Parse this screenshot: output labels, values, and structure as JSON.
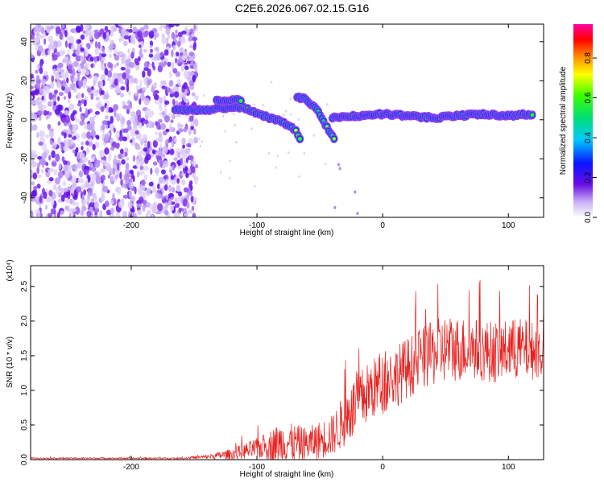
{
  "figure": {
    "title": "C2E6.2026.067.02.15.G16"
  },
  "chart_data": [
    {
      "type": "heatmap",
      "xlabel": "Height of straight line (km)",
      "ylabel": "Frequency (Hz)",
      "xlim": [
        -280,
        128
      ],
      "ylim": [
        -50,
        49
      ],
      "x_ticks": [
        -200,
        -100,
        0,
        100
      ],
      "x_tick_labels": [
        "-200",
        "-100",
        "0",
        "100"
      ],
      "y_ticks": [
        -40,
        -20,
        0,
        20,
        40
      ],
      "y_tick_labels": [
        "-40",
        "-20",
        "0",
        "20",
        "40"
      ],
      "colorbar": {
        "label": "Normalized spectral amplitude",
        "range": [
          0,
          0.97
        ],
        "ticks": [
          0,
          0.2,
          0.4,
          0.6,
          0.8
        ],
        "tick_labels": [
          "0.0",
          "0.2",
          "0.4",
          "0.6",
          "0.8"
        ]
      },
      "noise_region_x": [
        -280,
        -148
      ],
      "ridge": [
        {
          "x": -165,
          "f": 5
        },
        {
          "x": -150,
          "f": 5
        },
        {
          "x": -140,
          "f": 5
        },
        {
          "x": -130,
          "f": 6
        },
        {
          "x": -120,
          "f": 6
        },
        {
          "x": -110,
          "f": 6
        },
        {
          "x": -100,
          "f": 3
        },
        {
          "x": -90,
          "f": 1
        },
        {
          "x": -80,
          "f": -1
        },
        {
          "x": -70,
          "f": -5
        },
        {
          "x": -65,
          "f": -10
        }
      ],
      "ridge_secondary": [
        {
          "x": -132,
          "f": 10
        },
        {
          "x": -120,
          "f": 10
        },
        {
          "x": -112,
          "f": 10
        }
      ],
      "ridge_descending": [
        {
          "x": -68,
          "f": 12
        },
        {
          "x": -60,
          "f": 10
        },
        {
          "x": -52,
          "f": 5
        },
        {
          "x": -45,
          "f": -3
        },
        {
          "x": -38,
          "f": -10
        }
      ],
      "ridge_tail": [
        {
          "x": -40,
          "f": 1
        },
        {
          "x": -20,
          "f": 2
        },
        {
          "x": 0,
          "f": 3
        },
        {
          "x": 20,
          "f": 2
        },
        {
          "x": 40,
          "f": 1
        },
        {
          "x": 60,
          "f": 2
        },
        {
          "x": 80,
          "f": 3
        },
        {
          "x": 100,
          "f": 2
        },
        {
          "x": 120,
          "f": 3
        }
      ]
    },
    {
      "type": "line",
      "xlabel": "Height of straight line (km)",
      "ylabel": "SNR (10 * v/v)",
      "exponent_label": "(x10⁴)",
      "xlim": [
        -280,
        128
      ],
      "ylim": [
        0,
        2.8
      ],
      "x_ticks": [
        -200,
        -100,
        0,
        100
      ],
      "x_tick_labels": [
        "-200",
        "-100",
        "0",
        "100"
      ],
      "y_ticks": [
        0,
        0.5,
        1.0,
        1.5,
        2.0,
        2.5
      ],
      "y_tick_labels": [
        "0.0",
        "0.5",
        "1.0",
        "1.5",
        "2.0",
        "2.5"
      ],
      "series": [
        {
          "color": "#e8201e",
          "envelope": [
            {
              "x": -280,
              "mean": 0.02,
              "spread": 0.01
            },
            {
              "x": -160,
              "mean": 0.02,
              "spread": 0.01
            },
            {
              "x": -140,
              "mean": 0.04,
              "spread": 0.03
            },
            {
              "x": -120,
              "mean": 0.08,
              "spread": 0.08
            },
            {
              "x": -100,
              "mean": 0.16,
              "spread": 0.15
            },
            {
              "x": -80,
              "mean": 0.25,
              "spread": 0.3
            },
            {
              "x": -60,
              "mean": 0.22,
              "spread": 0.25
            },
            {
              "x": -40,
              "mean": 0.35,
              "spread": 0.3
            },
            {
              "x": -25,
              "mean": 0.7,
              "spread": 0.45
            },
            {
              "x": -10,
              "mean": 1.0,
              "spread": 0.45
            },
            {
              "x": 10,
              "mean": 1.2,
              "spread": 0.45
            },
            {
              "x": 30,
              "mean": 1.45,
              "spread": 0.45
            },
            {
              "x": 50,
              "mean": 1.6,
              "spread": 0.5
            },
            {
              "x": 70,
              "mean": 1.6,
              "spread": 0.45
            },
            {
              "x": 90,
              "mean": 1.55,
              "spread": 0.45
            },
            {
              "x": 110,
              "mean": 1.6,
              "spread": 0.45
            },
            {
              "x": 128,
              "mean": 1.55,
              "spread": 0.4
            }
          ]
        }
      ]
    }
  ]
}
